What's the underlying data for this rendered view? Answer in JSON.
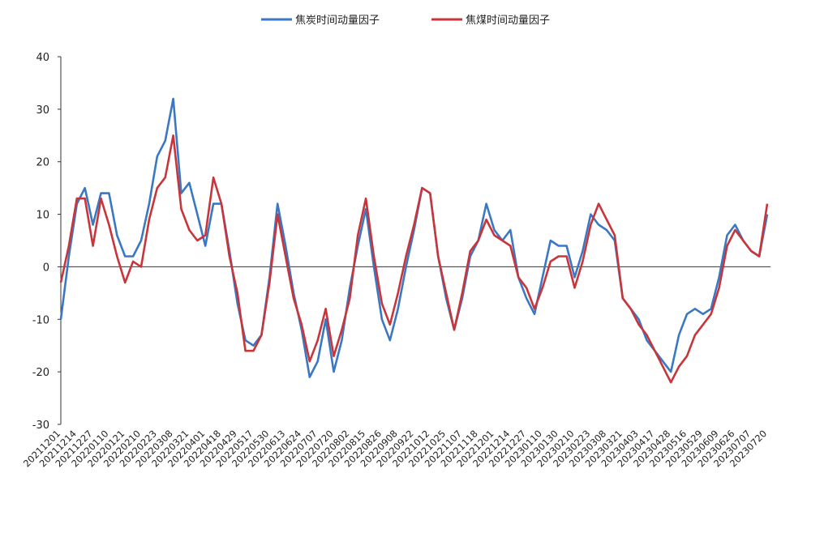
{
  "chart_data": {
    "type": "line",
    "categories": [
      "20211201",
      null,
      "20211214",
      null,
      "20211227",
      null,
      "20220110",
      null,
      "20220121",
      null,
      "20220210",
      null,
      "20220223",
      null,
      "20220308",
      null,
      "20220321",
      null,
      "20220401",
      null,
      "20220418",
      null,
      "20220429",
      null,
      "20220517",
      null,
      "20220530",
      null,
      "20220613",
      null,
      "20220624",
      null,
      "20220707",
      null,
      "20220720",
      null,
      "20220802",
      null,
      "20220815",
      null,
      "20220826",
      null,
      "20220908",
      null,
      "20220922",
      null,
      "20221012",
      null,
      "20221025",
      null,
      "20221107",
      null,
      "20221118",
      null,
      "20221201",
      null,
      "20221214",
      null,
      "20221227",
      null,
      "20230110",
      null,
      "20230130",
      null,
      "20230210",
      null,
      "20230223",
      null,
      "20230308",
      null,
      "20230321",
      null,
      "20230403",
      null,
      "20230417",
      null,
      "20230428",
      null,
      "20230516",
      null,
      "20230529",
      null,
      "20230609",
      null,
      "20230626",
      null,
      "20230707",
      null,
      "20230720"
    ],
    "series": [
      {
        "name": "焦炭时间动量因子",
        "color": "#3a78c3",
        "values": [
          -10,
          2,
          12,
          15,
          8,
          14,
          14,
          6,
          2,
          2,
          5,
          12,
          21,
          24,
          32,
          14,
          16,
          10,
          4,
          12,
          12,
          3,
          -7,
          -14,
          -15,
          -13,
          -2,
          12,
          4,
          -5,
          -12,
          -21,
          -18,
          -10,
          -20,
          -14,
          -4,
          4,
          11,
          0,
          -10,
          -14,
          -8,
          0,
          7,
          15,
          14,
          2,
          -6,
          -12,
          -6,
          2,
          5,
          12,
          7,
          5,
          7,
          -2,
          -6,
          -9,
          -2,
          5,
          4,
          4,
          -2,
          3,
          10,
          8,
          7,
          5,
          -6,
          -8,
          -10,
          -14,
          -16,
          -18,
          -20,
          -13,
          -9,
          -8,
          -9,
          -8,
          -2,
          6,
          8,
          5,
          3,
          2,
          10
        ]
      },
      {
        "name": "焦煤时间动量因子",
        "color": "#c8353a",
        "values": [
          -3,
          4,
          13,
          13,
          4,
          13,
          8,
          2,
          -3,
          1,
          0,
          9,
          15,
          17,
          25,
          11,
          7,
          5,
          6,
          17,
          12,
          2,
          -5,
          -16,
          -16,
          -13,
          -3,
          10,
          2,
          -6,
          -11,
          -18,
          -14,
          -8,
          -17,
          -12,
          -6,
          6,
          13,
          2,
          -7,
          -11,
          -5,
          2,
          8,
          15,
          14,
          2,
          -5,
          -12,
          -5,
          3,
          5,
          9,
          6,
          5,
          4,
          -2,
          -4,
          -8,
          -4,
          1,
          2,
          2,
          -4,
          1,
          8,
          12,
          9,
          6,
          -6,
          -8,
          -11,
          -13,
          -16,
          -19,
          -22,
          -19,
          -17,
          -13,
          -11,
          -9,
          -4,
          4,
          7,
          5,
          3,
          2,
          12
        ]
      }
    ],
    "ylim": [
      -30,
      40
    ],
    "yticks": [
      -30,
      -20,
      -10,
      0,
      10,
      20,
      30,
      40
    ],
    "grid": false,
    "legend": "top"
  }
}
